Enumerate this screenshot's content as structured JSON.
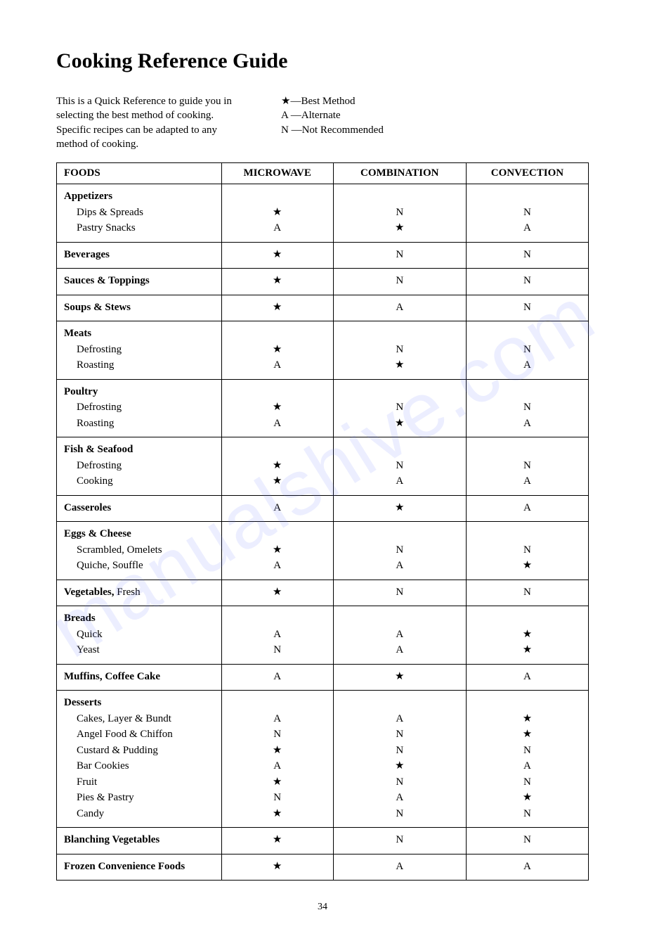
{
  "title": "Cooking Reference Guide",
  "intro_text": "This is a Quick Reference to guide you in selecting the best method of cooking. Specific recipes can be adapted to any method of cooking.",
  "legend": [
    {
      "sym": "★",
      "label": "—Best Method"
    },
    {
      "sym": "A",
      "label": " —Alternate"
    },
    {
      "sym": "N",
      "label": " —Not Recommended"
    }
  ],
  "columns": [
    "FOODS",
    "MICROWAVE",
    "COMBINATION",
    "CONVECTION"
  ],
  "rows": [
    {
      "category": "Appetizers",
      "items": [
        {
          "name": "Dips & Spreads",
          "m": "★",
          "cb": "N",
          "cv": "N"
        },
        {
          "name": "Pastry Snacks",
          "m": "A",
          "cb": "★",
          "cv": "A"
        }
      ]
    },
    {
      "category": "Beverages",
      "m": "★",
      "cb": "N",
      "cv": "N"
    },
    {
      "category": "Sauces & Toppings",
      "m": "★",
      "cb": "N",
      "cv": "N"
    },
    {
      "category": "Soups & Stews",
      "m": "★",
      "cb": "A",
      "cv": "N"
    },
    {
      "category": "Meats",
      "items": [
        {
          "name": "Defrosting",
          "m": "★",
          "cb": "N",
          "cv": "N"
        },
        {
          "name": "Roasting",
          "m": "A",
          "cb": "★",
          "cv": "A"
        }
      ]
    },
    {
      "category": "Poultry",
      "items": [
        {
          "name": "Defrosting",
          "m": "★",
          "cb": "N",
          "cv": "N"
        },
        {
          "name": "Roasting",
          "m": "A",
          "cb": "★",
          "cv": "A"
        }
      ]
    },
    {
      "category": "Fish & Seafood",
      "items": [
        {
          "name": "Defrosting",
          "m": "★",
          "cb": "N",
          "cv": "N"
        },
        {
          "name": "Cooking",
          "m": "★",
          "cb": "A",
          "cv": "A"
        }
      ]
    },
    {
      "category": "Casseroles",
      "m": "A",
      "cb": "★",
      "cv": "A"
    },
    {
      "category": "Eggs & Cheese",
      "items": [
        {
          "name": "Scrambled, Omelets",
          "m": "★",
          "cb": "N",
          "cv": "N"
        },
        {
          "name": "Quiche, Souffle",
          "m": "A",
          "cb": "A",
          "cv": "★"
        }
      ]
    },
    {
      "category_mixed": {
        "bold": "Vegetables,",
        "rest": " Fresh"
      },
      "m": "★",
      "cb": "N",
      "cv": "N"
    },
    {
      "category": "Breads",
      "items": [
        {
          "name": "Quick",
          "m": "A",
          "cb": "A",
          "cv": "★"
        },
        {
          "name": "Yeast",
          "m": "N",
          "cb": "A",
          "cv": "★"
        }
      ]
    },
    {
      "category": "Muffins, Coffee Cake",
      "m": "A",
      "cb": "★",
      "cv": "A"
    },
    {
      "category": "Desserts",
      "items": [
        {
          "name": "Cakes, Layer & Bundt",
          "m": "A",
          "cb": "A",
          "cv": "★"
        },
        {
          "name": "Angel Food & Chiffon",
          "m": "N",
          "cb": "N",
          "cv": "★"
        },
        {
          "name": "Custard & Pudding",
          "m": "★",
          "cb": "N",
          "cv": "N"
        },
        {
          "name": "Bar Cookies",
          "m": "A",
          "cb": "★",
          "cv": "A"
        },
        {
          "name": "Fruit",
          "m": "★",
          "cb": "N",
          "cv": "N"
        },
        {
          "name": "Pies & Pastry",
          "m": "N",
          "cb": "A",
          "cv": "★"
        },
        {
          "name": "Candy",
          "m": "★",
          "cb": "N",
          "cv": "N"
        }
      ]
    },
    {
      "category": "Blanching Vegetables",
      "m": "★",
      "cb": "N",
      "cv": "N"
    },
    {
      "category": "Frozen Convenience Foods",
      "m": "★",
      "cb": "A",
      "cv": "A"
    }
  ],
  "page_number": "34",
  "watermark": "manualshive.com"
}
